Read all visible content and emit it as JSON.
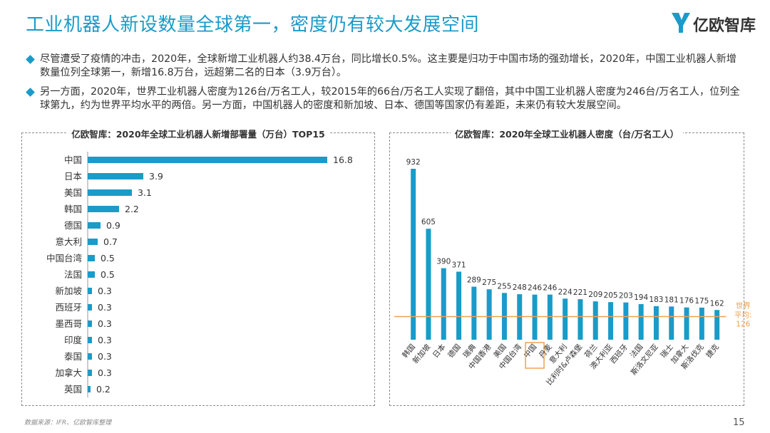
{
  "header": {
    "title": "工业机器人新设数量全球第一，密度仍有较大发展空间",
    "logo_text": "亿欧智库"
  },
  "bullets": [
    "尽管遭受了疫情的冲击，2020年，全球新增工业机器人约38.4万台，同比增长0.5%。这主要是归功于中国市场的强劲增长，2020年，中国工业机器人新增数量位列全球第一，新增16.8万台，远超第二名的日本（3.9万台）。",
    "另一方面，2020年，世界工业机器人密度为126台/万名工人，较2015年的66台/万名工人实现了翻倍，其中中国工业机器人密度为246台/万名工人，位列全球第九，约为世界平均水平的两倍。另一方面，中国机器人的密度和新加坡、日本、德国等国家仍有差距，未来仍有较大发展空间。"
  ],
  "colors": {
    "accent": "#1a9bc9",
    "average_line": "#f0a050",
    "highlight_box": "#f0a050"
  },
  "chart_data": [
    {
      "type": "bar",
      "orientation": "horizontal",
      "title": "亿欧智库：2020年全球工业机器人新增部署量（万台）TOP15",
      "categories": [
        "中国",
        "日本",
        "美国",
        "韩国",
        "德国",
        "意大利",
        "中国台湾",
        "法国",
        "新加坡",
        "西班牙",
        "墨西哥",
        "印度",
        "泰国",
        "加拿大",
        "英国"
      ],
      "values": [
        16.8,
        3.9,
        3.1,
        2.2,
        0.9,
        0.7,
        0.5,
        0.5,
        0.3,
        0.3,
        0.3,
        0.3,
        0.3,
        0.3,
        0.2
      ],
      "value_labels": [
        "16.8",
        "3.9",
        "3.1",
        "2.2",
        "0.9",
        "0.7",
        "0.5",
        "0.5",
        "0.3",
        "0.3",
        "0.3",
        "0.3",
        "0.3",
        "0.3",
        "0.2"
      ],
      "xlim": [
        0,
        16.8
      ],
      "grid": false
    },
    {
      "type": "bar",
      "orientation": "vertical",
      "title": "亿欧智库：2020年全球工业机器人密度（台/万名工人）",
      "categories": [
        "韩国",
        "新加坡",
        "日本",
        "德国",
        "瑞典",
        "中国香港",
        "美国",
        "中国台湾",
        "中国",
        "丹麦",
        "意大利",
        "比利时&卢森堡",
        "荷兰",
        "澳大利亚",
        "西班牙",
        "法国",
        "斯洛文尼亚",
        "瑞士",
        "加拿大",
        "斯洛伐克",
        "捷克"
      ],
      "values": [
        932,
        605,
        390,
        371,
        289,
        275,
        255,
        248,
        246,
        246,
        224,
        221,
        209,
        205,
        203,
        194,
        183,
        181,
        176,
        175,
        162
      ],
      "value_labels": [
        "932",
        "605",
        "390",
        "371",
        "289",
        "275",
        "255",
        "248",
        "246",
        "246",
        "224",
        "221",
        "209",
        "205",
        "203",
        "194",
        "183",
        "181",
        "176",
        "175",
        "162"
      ],
      "highlight_category": "中国",
      "reference_line": {
        "value": 126,
        "label_line1": "世界",
        "label_line2": "平均:",
        "label_line3": "126"
      },
      "ylim": [
        0,
        932
      ],
      "grid": false
    }
  ],
  "footer": {
    "source": "数据来源：IFR、亿欧智库整理",
    "page": "15"
  }
}
